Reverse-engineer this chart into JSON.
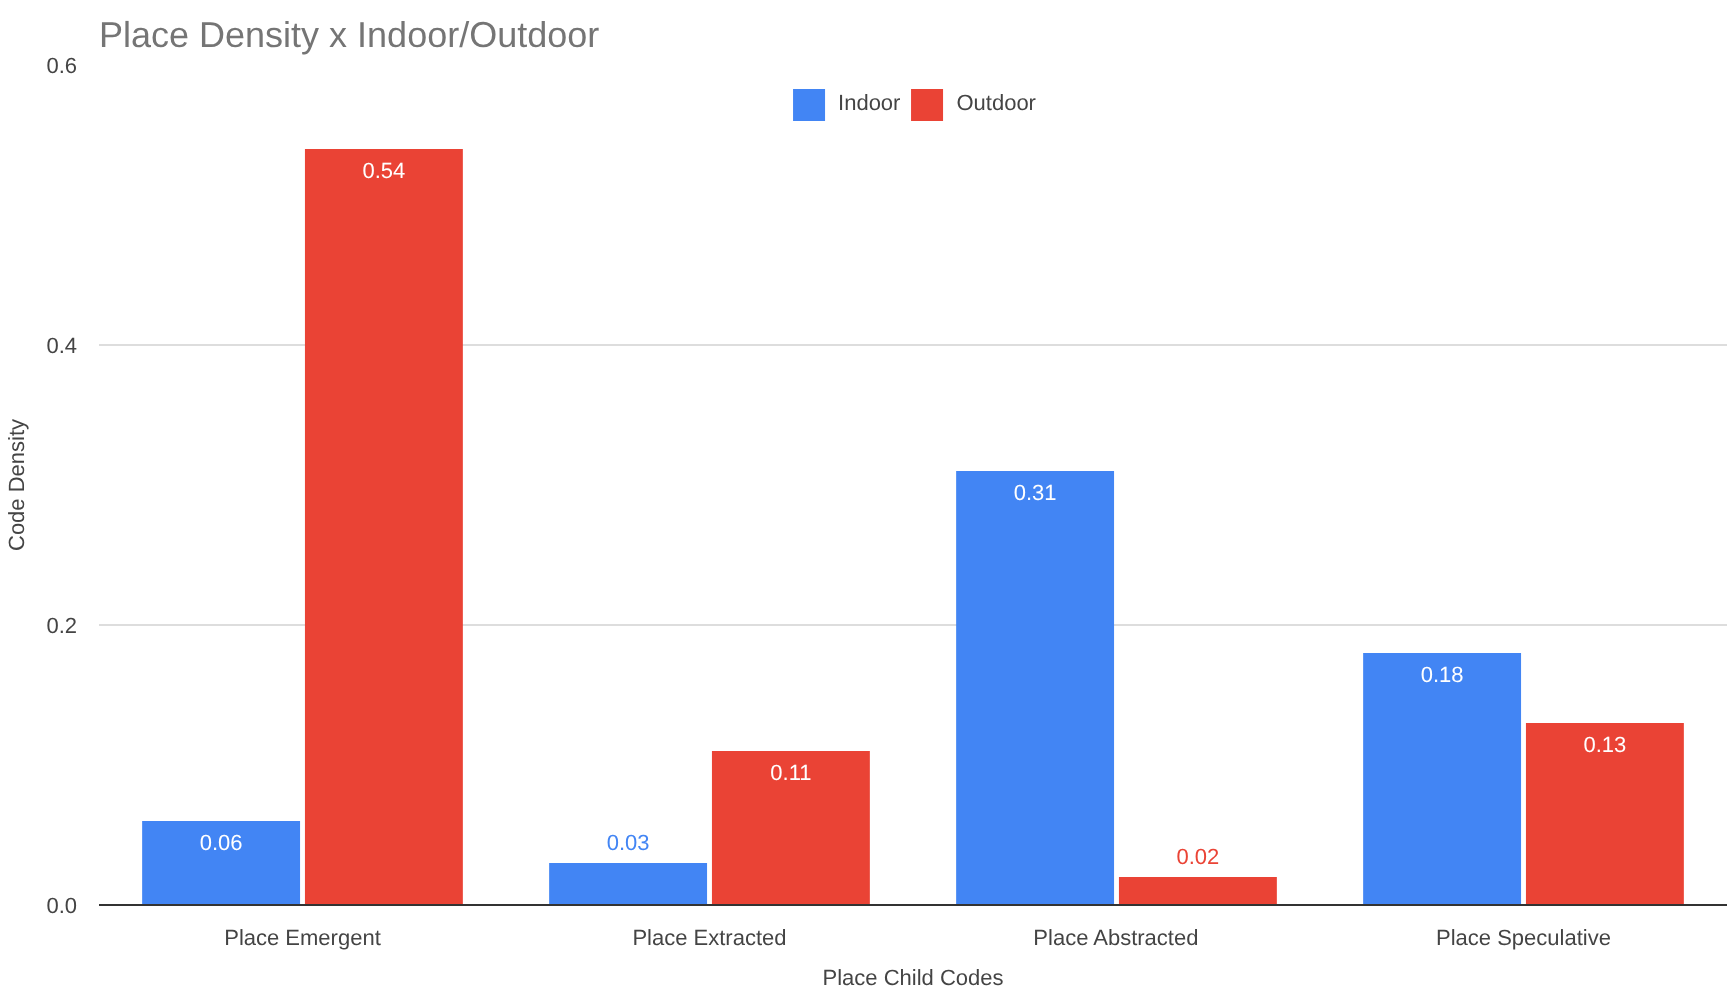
{
  "chart_data": {
    "type": "bar",
    "title": "Place Density x Indoor/Outdoor",
    "xlabel": "Place Child Codes",
    "ylabel": "Code Density",
    "categories": [
      "Place Emergent",
      "Place Extracted",
      "Place Abstracted",
      "Place Speculative"
    ],
    "series": [
      {
        "name": "Indoor",
        "color": "#4285f4",
        "values": [
          0.06,
          0.03,
          0.31,
          0.18
        ]
      },
      {
        "name": "Outdoor",
        "color": "#ea4335",
        "values": [
          0.54,
          0.11,
          0.02,
          0.13
        ]
      }
    ],
    "ylim": [
      0,
      0.6
    ],
    "yticks": [
      {
        "value": 0,
        "label": "0.0"
      },
      {
        "value": 0.2,
        "label": "0.2"
      },
      {
        "value": 0.4,
        "label": "0.4"
      },
      {
        "value": 0.6,
        "label": "0.6"
      }
    ],
    "grid": "y",
    "legend": "top",
    "data_labels": true
  }
}
